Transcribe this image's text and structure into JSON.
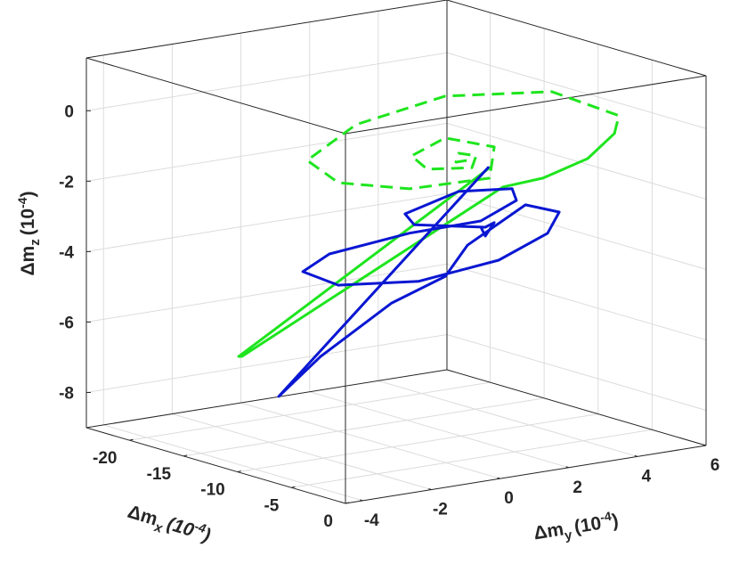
{
  "chart_data": {
    "type": "line3d",
    "xlabel": [
      "Δm",
      "x",
      "(10",
      "-4",
      ")"
    ],
    "ylabel": [
      "Δm",
      "y",
      "(10",
      "-4",
      ")"
    ],
    "zlabel": [
      "Δm",
      "z",
      "(10",
      "-4",
      ")"
    ],
    "xlim": [
      -24,
      0
    ],
    "xticks": [
      -20,
      -15,
      -10,
      -5,
      0
    ],
    "ylim": [
      -4.5,
      6
    ],
    "yticks": [
      -4,
      -2,
      0,
      2,
      4,
      6
    ],
    "zlim": [
      -9,
      1.5
    ],
    "zticks": [
      -8,
      -6,
      -4,
      -2,
      0
    ],
    "grid": true,
    "series": [
      {
        "color": "#1ee51e",
        "dash": false,
        "x": [
          -4,
          -18,
          -17.5,
          -2,
          -2,
          -2,
          -2
        ],
        "y": [
          0.96,
          -1.95,
          -2.01,
          0.72,
          1.88,
          3.18,
          3.96
        ],
        "z": [
          -0.68,
          -6.84,
          -6.78,
          -1.01,
          -0.94,
          -0.59,
          0
        ]
      },
      {
        "color": "#1ee51e",
        "dash": true,
        "x": [
          -2,
          -5.5,
          -12.6,
          -15.2,
          -12.3,
          -6.6,
          -1,
          0,
          0,
          -4,
          -6,
          -4,
          -2,
          -2,
          -3,
          -3,
          -3,
          -3
        ],
        "y": [
          3.96,
          5.19,
          5.47,
          3.18,
          -0.33,
          -3.54,
          -4.39,
          -2.63,
          -0.3,
          1.09,
          0.29,
          -1.32,
          -1.49,
          -0.19,
          0.25,
          -0.26,
          -0.34,
          0
        ],
        "z": [
          0,
          0,
          0,
          0,
          0,
          0,
          0,
          -0.36,
          -0.42,
          -0.11,
          0.09,
          0.01,
          -0.16,
          -0.32,
          -0.14,
          0.01,
          -0.23,
          -0.23
        ]
      },
      {
        "color": "#0a17d2",
        "dash": false,
        "x": [
          -4,
          -14,
          -12,
          -8,
          -5,
          -4,
          -2,
          -1,
          -1,
          -2,
          -6,
          -10,
          -12,
          -11,
          -8,
          -5,
          -3,
          -4,
          -6,
          -8,
          -7,
          -4,
          -4,
          -4,
          -4
        ],
        "y": [
          0.91,
          -2.04,
          -1.45,
          -0.64,
          -0.02,
          0.31,
          1.37,
          2.04,
          1.7,
          0.59,
          -0.49,
          -1.56,
          -1.97,
          -1.51,
          -0.12,
          1.01,
          1.42,
          1.61,
          0.68,
          -0.25,
          -0.3,
          0.83,
          1.09,
          0.83,
          0.7
        ],
        "z": [
          -0.67,
          -7.6,
          -6.38,
          -4.63,
          -3.7,
          -2.78,
          -1.62,
          -1.84,
          -2.39,
          -3.07,
          -3.86,
          -4.16,
          -3.89,
          -3.37,
          -2.73,
          -2.29,
          -1.59,
          -1.38,
          -1.49,
          -2.16,
          -2.37,
          -2.35,
          -2.26,
          -2.6,
          -2.33
        ]
      }
    ]
  }
}
